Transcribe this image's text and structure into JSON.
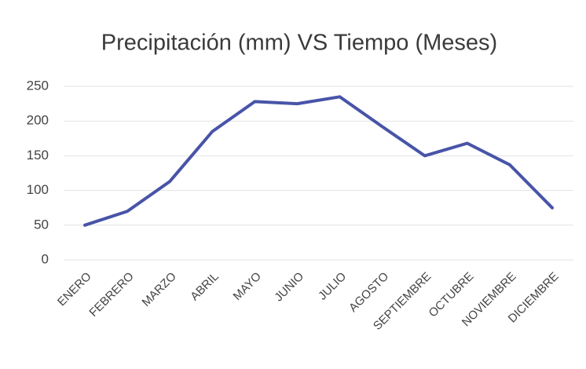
{
  "chart_data": {
    "type": "line",
    "title": "Precipitación (mm) VS Tiempo (Meses)",
    "categories": [
      "ENERO",
      "FEBRERO",
      "MARZO",
      "ABRIL",
      "MAYO",
      "JUNIO",
      "JULIO",
      "AGOSTO",
      "SEPTIEMBRE",
      "OCTUBRE",
      "NOVIEMBRE",
      "DICIEMBRE"
    ],
    "values": [
      50,
      70,
      113,
      185,
      228,
      225,
      235,
      192,
      150,
      168,
      137,
      75
    ],
    "color": "#4854a8",
    "ylim": [
      0,
      250
    ],
    "yticks": [
      0,
      50,
      100,
      150,
      200,
      250
    ],
    "grid": true
  }
}
